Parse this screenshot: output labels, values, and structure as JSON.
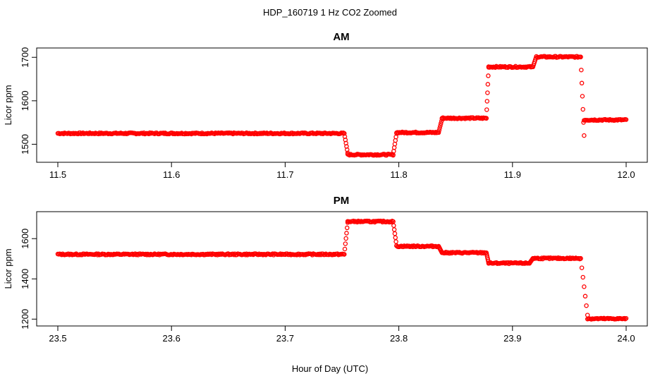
{
  "chart_data": [
    {
      "type": "scatter",
      "suptitle": "HDP_160719  1 Hz CO2 Zoomed",
      "title": "AM",
      "xlabel": "",
      "ylabel": "Licor ppm",
      "xlim": [
        11.5,
        12.0
      ],
      "ylim": [
        1465,
        1715
      ],
      "xticks": [
        11.5,
        11.6,
        11.7,
        11.8,
        11.9,
        12.0
      ],
      "xtick_labels": [
        "11.5",
        "11.6",
        "11.7",
        "11.8",
        "11.9",
        "12.0"
      ],
      "yticks": [
        1500,
        1600,
        1700
      ],
      "ytick_labels": [
        "1500",
        "1600",
        "1700"
      ],
      "marker": "open-circle",
      "color": "#ff0000",
      "segments": [
        {
          "x": [
            11.5,
            11.752
          ],
          "y": [
            1525,
            1525
          ]
        },
        {
          "x": [
            11.752,
            11.755
          ],
          "y": [
            1525,
            1480
          ]
        },
        {
          "x": [
            11.755,
            11.795
          ],
          "y": [
            1476,
            1476
          ]
        },
        {
          "x": [
            11.795,
            11.798
          ],
          "y": [
            1476,
            1525
          ]
        },
        {
          "x": [
            11.798,
            11.835
          ],
          "y": [
            1527,
            1527
          ]
        },
        {
          "x": [
            11.835,
            11.838
          ],
          "y": [
            1527,
            1558
          ]
        },
        {
          "x": [
            11.838,
            11.877
          ],
          "y": [
            1560,
            1560
          ]
        },
        {
          "x": [
            11.877,
            11.879
          ],
          "y": [
            1560,
            1677
          ]
        },
        {
          "x": [
            11.879,
            11.918
          ],
          "y": [
            1678,
            1678
          ]
        },
        {
          "x": [
            11.918,
            11.921
          ],
          "y": [
            1678,
            1702
          ]
        },
        {
          "x": [
            11.921,
            11.96
          ],
          "y": [
            1701,
            1701
          ]
        },
        {
          "x": [
            11.96,
            11.963
          ],
          "y": [
            1701,
            1520
          ]
        },
        {
          "x": [
            11.963,
            12.0
          ],
          "y": [
            1556,
            1556
          ]
        }
      ]
    },
    {
      "type": "scatter",
      "title": "PM",
      "xlabel": "Hour of Day (UTC)",
      "ylabel": "Licor ppm",
      "xlim": [
        23.5,
        24.0
      ],
      "ylim": [
        1180,
        1720
      ],
      "xticks": [
        23.5,
        23.6,
        23.7,
        23.8,
        23.9,
        24.0
      ],
      "xtick_labels": [
        "23.5",
        "23.6",
        "23.7",
        "23.8",
        "23.9",
        "24.0"
      ],
      "yticks": [
        1200,
        1400,
        1600
      ],
      "ytick_labels": [
        "1200",
        "1400",
        "1600"
      ],
      "marker": "open-circle",
      "color": "#ff0000",
      "segments": [
        {
          "x": [
            23.5,
            23.752
          ],
          "y": [
            1522,
            1522
          ]
        },
        {
          "x": [
            23.752,
            23.755
          ],
          "y": [
            1522,
            1680
          ]
        },
        {
          "x": [
            23.755,
            23.795
          ],
          "y": [
            1685,
            1685
          ]
        },
        {
          "x": [
            23.795,
            23.798
          ],
          "y": [
            1685,
            1565
          ]
        },
        {
          "x": [
            23.798,
            23.835
          ],
          "y": [
            1562,
            1562
          ]
        },
        {
          "x": [
            23.835,
            23.838
          ],
          "y": [
            1562,
            1530
          ]
        },
        {
          "x": [
            23.838,
            23.877
          ],
          "y": [
            1530,
            1530
          ]
        },
        {
          "x": [
            23.877,
            23.879
          ],
          "y": [
            1530,
            1480
          ]
        },
        {
          "x": [
            23.879,
            23.915
          ],
          "y": [
            1478,
            1478
          ]
        },
        {
          "x": [
            23.915,
            23.918
          ],
          "y": [
            1478,
            1502
          ]
        },
        {
          "x": [
            23.918,
            23.96
          ],
          "y": [
            1502,
            1502
          ]
        },
        {
          "x": [
            23.96,
            23.966
          ],
          "y": [
            1502,
            1220
          ]
        },
        {
          "x": [
            23.966,
            24.0
          ],
          "y": [
            1202,
            1202
          ]
        }
      ]
    }
  ]
}
